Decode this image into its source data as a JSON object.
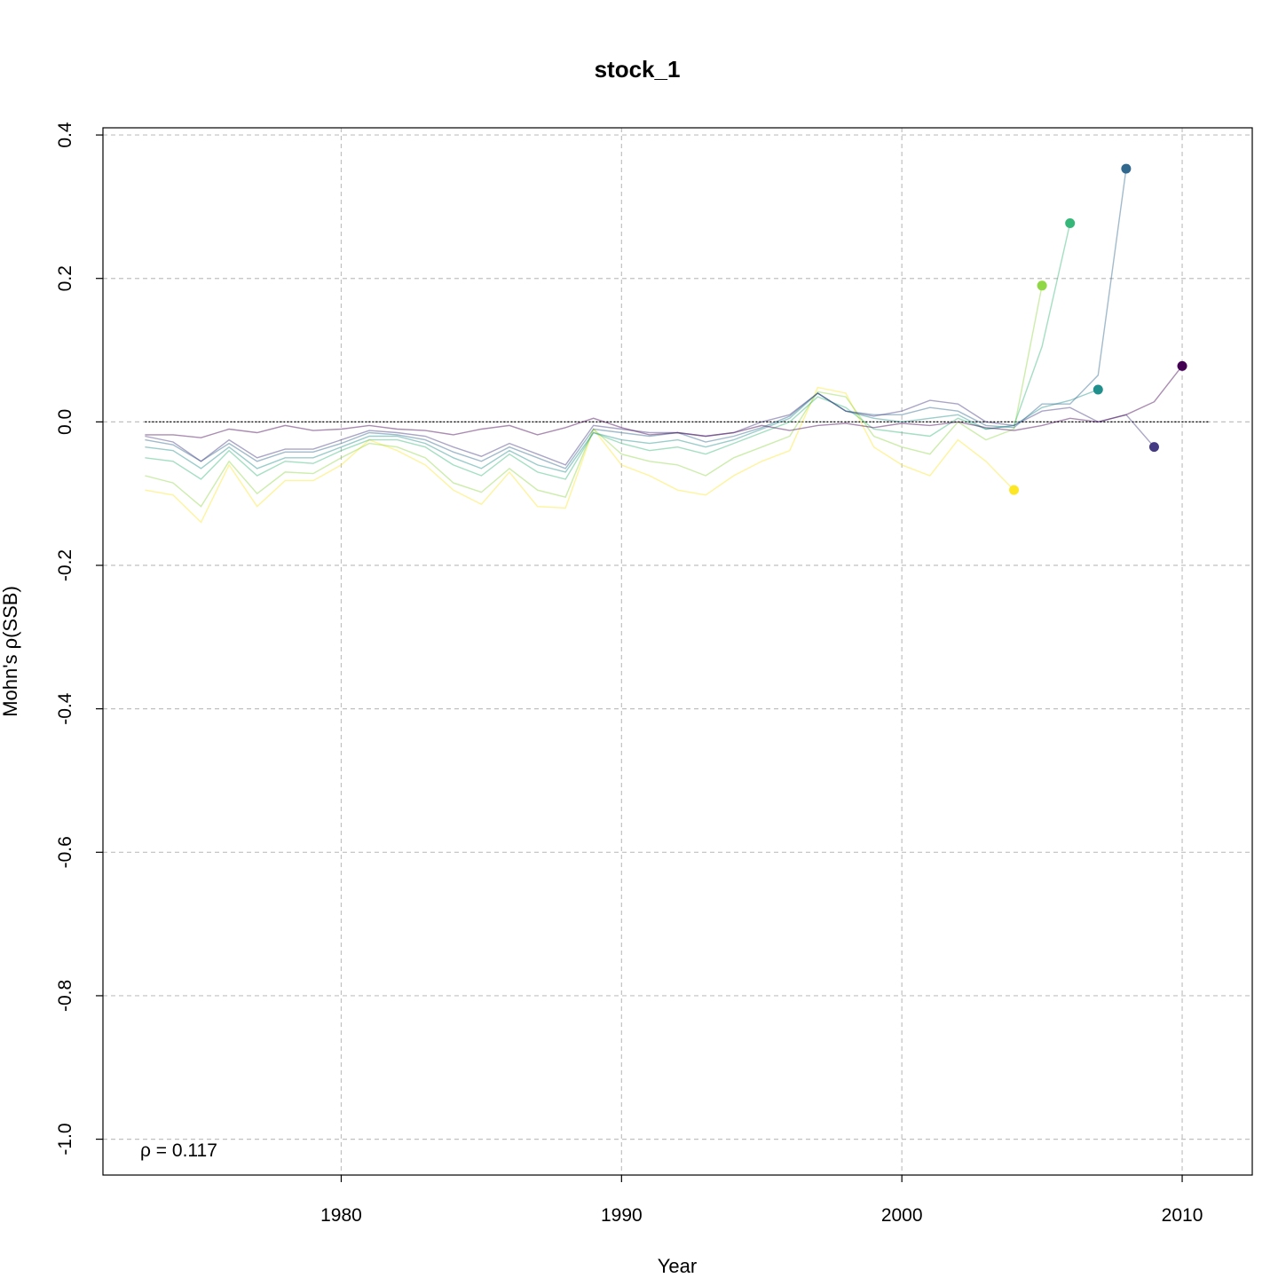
{
  "chart_data": {
    "type": "line",
    "title": "stock_1",
    "xlabel": "Year",
    "ylabel": "Mohn's ρ(SSB)",
    "xlim": [
      1971.5,
      2012.5
    ],
    "ylim": [
      -1.05,
      0.41
    ],
    "x_ticks": [
      1980,
      1990,
      2000,
      2010
    ],
    "y_ticks": [
      -1.0,
      -0.8,
      -0.6,
      -0.4,
      -0.2,
      0.0,
      0.2,
      0.4
    ],
    "x_tick_labels": [
      "1980",
      "1990",
      "2000",
      "2010"
    ],
    "y_tick_labels": [
      "-1.0",
      "-0.8",
      "-0.6",
      "-0.4",
      "-0.2",
      "0.0",
      "0.2",
      "0.4"
    ],
    "grid": true,
    "reference_line": {
      "y": 0,
      "x": [
        1973,
        2011
      ]
    },
    "annotation": {
      "symbol": "ρ",
      "operator": " = ",
      "value": "0.117"
    },
    "series": [
      {
        "color": "#FDE725",
        "end": [
          2004,
          -0.095
        ],
        "x": [
          1973,
          1974,
          1975,
          1976,
          1977,
          1978,
          1979,
          1980,
          1981,
          1982,
          1983,
          1984,
          1985,
          1986,
          1987,
          1988,
          1989,
          1990,
          1991,
          1992,
          1993,
          1994,
          1995,
          1996,
          1997,
          1998,
          1999,
          2000,
          2001,
          2002,
          2003,
          2004
        ],
        "y": [
          -0.095,
          -0.102,
          -0.14,
          -0.06,
          -0.118,
          -0.082,
          -0.082,
          -0.06,
          -0.025,
          -0.04,
          -0.06,
          -0.095,
          -0.115,
          -0.07,
          -0.118,
          -0.12,
          -0.01,
          -0.06,
          -0.075,
          -0.095,
          -0.102,
          -0.075,
          -0.055,
          -0.04,
          0.048,
          0.04,
          -0.035,
          -0.06,
          -0.075,
          -0.025,
          -0.055,
          -0.095
        ]
      },
      {
        "color": "#8FD744",
        "end": [
          2005,
          0.19
        ],
        "x": [
          1973,
          1974,
          1975,
          1976,
          1977,
          1978,
          1979,
          1980,
          1981,
          1982,
          1983,
          1984,
          1985,
          1986,
          1987,
          1988,
          1989,
          1990,
          1991,
          1992,
          1993,
          1994,
          1995,
          1996,
          1997,
          1998,
          1999,
          2000,
          2001,
          2002,
          2003,
          2004,
          2005
        ],
        "y": [
          -0.075,
          -0.085,
          -0.118,
          -0.055,
          -0.1,
          -0.07,
          -0.072,
          -0.05,
          -0.03,
          -0.035,
          -0.05,
          -0.085,
          -0.098,
          -0.065,
          -0.095,
          -0.105,
          -0.01,
          -0.045,
          -0.055,
          -0.06,
          -0.075,
          -0.05,
          -0.035,
          -0.02,
          0.042,
          0.035,
          -0.02,
          -0.035,
          -0.045,
          0.0,
          -0.025,
          -0.01,
          0.19
        ]
      },
      {
        "color": "#35B779",
        "end": [
          2006,
          0.277
        ],
        "x": [
          1973,
          1974,
          1975,
          1976,
          1977,
          1978,
          1979,
          1980,
          1981,
          1982,
          1983,
          1984,
          1985,
          1986,
          1987,
          1988,
          1989,
          1990,
          1991,
          1992,
          1993,
          1994,
          1995,
          1996,
          1997,
          1998,
          1999,
          2000,
          2001,
          2002,
          2003,
          2004,
          2005,
          2006
        ],
        "y": [
          -0.05,
          -0.055,
          -0.08,
          -0.04,
          -0.075,
          -0.055,
          -0.058,
          -0.04,
          -0.025,
          -0.025,
          -0.035,
          -0.06,
          -0.075,
          -0.045,
          -0.07,
          -0.08,
          -0.015,
          -0.03,
          -0.04,
          -0.035,
          -0.045,
          -0.03,
          -0.015,
          0.0,
          0.035,
          0.02,
          -0.01,
          -0.015,
          -0.02,
          0.005,
          -0.01,
          -0.005,
          0.105,
          0.277
        ]
      },
      {
        "color": "#21908C",
        "end": [
          2007,
          0.045
        ],
        "x": [
          1973,
          1974,
          1975,
          1976,
          1977,
          1978,
          1979,
          1980,
          1981,
          1982,
          1983,
          1984,
          1985,
          1986,
          1987,
          1988,
          1989,
          1990,
          1991,
          1992,
          1993,
          1994,
          1995,
          1996,
          1997,
          1998,
          1999,
          2000,
          2001,
          2002,
          2003,
          2004,
          2005,
          2006,
          2007
        ],
        "y": [
          -0.035,
          -0.04,
          -0.065,
          -0.035,
          -0.065,
          -0.05,
          -0.05,
          -0.035,
          -0.02,
          -0.02,
          -0.03,
          -0.05,
          -0.065,
          -0.04,
          -0.06,
          -0.07,
          -0.015,
          -0.025,
          -0.03,
          -0.025,
          -0.035,
          -0.025,
          -0.01,
          0.005,
          0.04,
          0.015,
          0.005,
          0.0,
          0.005,
          0.01,
          -0.01,
          -0.005,
          0.02,
          0.03,
          0.045
        ]
      },
      {
        "color": "#31688E",
        "end": [
          2008,
          0.353
        ],
        "x": [
          1973,
          1974,
          1975,
          1976,
          1977,
          1978,
          1979,
          1980,
          1981,
          1982,
          1983,
          1984,
          1985,
          1986,
          1987,
          1988,
          1989,
          1990,
          1991,
          1992,
          1993,
          1994,
          1995,
          1996,
          1997,
          1998,
          1999,
          2000,
          2001,
          2002,
          2003,
          2004,
          2005,
          2006,
          2007,
          2008
        ],
        "y": [
          -0.025,
          -0.032,
          -0.055,
          -0.03,
          -0.055,
          -0.042,
          -0.042,
          -0.03,
          -0.015,
          -0.018,
          -0.025,
          -0.042,
          -0.055,
          -0.035,
          -0.05,
          -0.065,
          -0.01,
          -0.015,
          -0.02,
          -0.015,
          -0.028,
          -0.02,
          -0.008,
          0.008,
          0.04,
          0.015,
          0.01,
          0.01,
          0.02,
          0.015,
          -0.005,
          -0.008,
          0.025,
          0.025,
          0.065,
          0.353
        ]
      },
      {
        "color": "#443A83",
        "end": [
          2009,
          -0.035
        ],
        "x": [
          1973,
          1974,
          1975,
          1976,
          1977,
          1978,
          1979,
          1980,
          1981,
          1982,
          1983,
          1984,
          1985,
          1986,
          1987,
          1988,
          1989,
          1990,
          1991,
          1992,
          1993,
          1994,
          1995,
          1996,
          1997,
          1998,
          1999,
          2000,
          2001,
          2002,
          2003,
          2004,
          2005,
          2006,
          2007,
          2008,
          2009
        ],
        "y": [
          -0.02,
          -0.028,
          -0.055,
          -0.025,
          -0.05,
          -0.038,
          -0.038,
          -0.025,
          -0.012,
          -0.015,
          -0.02,
          -0.035,
          -0.048,
          -0.03,
          -0.045,
          -0.06,
          -0.005,
          -0.01,
          -0.015,
          -0.015,
          -0.02,
          -0.015,
          0.0,
          0.01,
          0.04,
          0.015,
          0.008,
          0.015,
          0.03,
          0.025,
          0.0,
          -0.005,
          0.015,
          0.02,
          0.0,
          0.01,
          -0.035
        ]
      },
      {
        "color": "#440154",
        "end": [
          2010,
          0.078
        ],
        "x": [
          1973,
          1974,
          1975,
          1976,
          1977,
          1978,
          1979,
          1980,
          1981,
          1982,
          1983,
          1984,
          1985,
          1986,
          1987,
          1988,
          1989,
          1990,
          1991,
          1992,
          1993,
          1994,
          1995,
          1996,
          1997,
          1998,
          1999,
          2000,
          2001,
          2002,
          2003,
          2004,
          2005,
          2006,
          2007,
          2008,
          2009,
          2010
        ],
        "y": [
          -0.018,
          -0.018,
          -0.022,
          -0.01,
          -0.015,
          -0.005,
          -0.012,
          -0.01,
          -0.005,
          -0.01,
          -0.012,
          -0.018,
          -0.01,
          -0.005,
          -0.018,
          -0.008,
          0.005,
          -0.008,
          -0.018,
          -0.015,
          -0.02,
          -0.015,
          -0.005,
          -0.012,
          -0.005,
          -0.002,
          -0.008,
          -0.002,
          -0.005,
          0.0,
          -0.008,
          -0.012,
          -0.005,
          0.005,
          0.0,
          0.01,
          0.028,
          0.078
        ]
      }
    ]
  }
}
